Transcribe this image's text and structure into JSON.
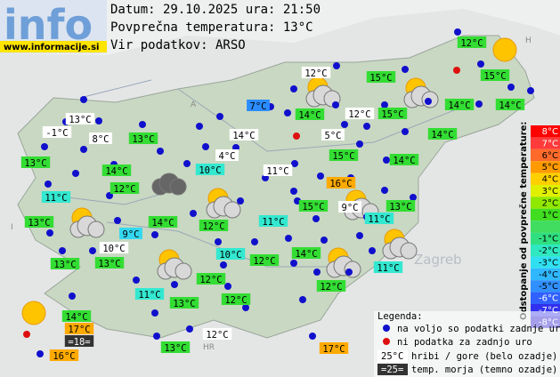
{
  "logo": {
    "title": "info",
    "url": "www.informacije.si"
  },
  "header": {
    "date": "Datum: 29.10.2025 ura: 21:50",
    "average": "Povprečna temperatura: 13°C",
    "source": "Vir podatkov: ARSO"
  },
  "map": {
    "labels": [
      "Zagreb",
      "HR",
      "A",
      "H",
      "I"
    ],
    "stations": [
      {
        "text": "12°C",
        "color": "#33dd33"
      },
      {
        "text": "12°C",
        "color": "#ffffff"
      },
      {
        "text": "15°C",
        "color": "#33dd33"
      },
      {
        "text": "15°C",
        "color": "#33dd33"
      },
      {
        "text": "7°C",
        "color": "#2a8cff"
      },
      {
        "text": "14°C",
        "color": "#33dd33"
      },
      {
        "text": "12°C",
        "color": "#ffffff"
      },
      {
        "text": "15°C",
        "color": "#33dd33"
      },
      {
        "text": "14°C",
        "color": "#33dd33"
      },
      {
        "text": "14°C",
        "color": "#33dd33"
      },
      {
        "text": "13°C",
        "color": "#ffffff"
      },
      {
        "text": "-1°C",
        "color": "#ffffff"
      },
      {
        "text": "8°C",
        "color": "#ffffff"
      },
      {
        "text": "13°C",
        "color": "#33dd33"
      },
      {
        "text": "14°C",
        "color": "#ffffff"
      },
      {
        "text": "5°C",
        "color": "#ffffff"
      },
      {
        "text": "14°C",
        "color": "#33dd33"
      },
      {
        "text": "13°C",
        "color": "#33dd33"
      },
      {
        "text": "4°C",
        "color": "#ffffff"
      },
      {
        "text": "15°C",
        "color": "#33dd33"
      },
      {
        "text": "14°C",
        "color": "#33dd33"
      },
      {
        "text": "14°C",
        "color": "#33dd33"
      },
      {
        "text": "10°C",
        "color": "#33e8d0"
      },
      {
        "text": "11°C",
        "color": "#ffffff"
      },
      {
        "text": "12°C",
        "color": "#33dd33"
      },
      {
        "text": "16°C",
        "color": "#ffaa00"
      },
      {
        "text": "11°C",
        "color": "#33e8d0"
      },
      {
        "text": "15°C",
        "color": "#33dd33"
      },
      {
        "text": "9°C",
        "color": "#ffffff"
      },
      {
        "text": "13°C",
        "color": "#33dd33"
      },
      {
        "text": "13°C",
        "color": "#33dd33"
      },
      {
        "text": "14°C",
        "color": "#33dd33"
      },
      {
        "text": "12°C",
        "color": "#33dd33"
      },
      {
        "text": "11°C",
        "color": "#33e8d0"
      },
      {
        "text": "11°C",
        "color": "#33e8d0"
      },
      {
        "text": "9°C",
        "color": "#33d8f0"
      },
      {
        "text": "10°C",
        "color": "#ffffff"
      },
      {
        "text": "10°C",
        "color": "#33e8d0"
      },
      {
        "text": "12°C",
        "color": "#33dd33"
      },
      {
        "text": "14°C",
        "color": "#33dd33"
      },
      {
        "text": "13°C",
        "color": "#33dd33"
      },
      {
        "text": "13°C",
        "color": "#33dd33"
      },
      {
        "text": "11°C",
        "color": "#33e8d0"
      },
      {
        "text": "12°C",
        "color": "#33dd33"
      },
      {
        "text": "11°C",
        "color": "#33e8d0"
      },
      {
        "text": "13°C",
        "color": "#33dd33"
      },
      {
        "text": "12°C",
        "color": "#33dd33"
      },
      {
        "text": "12°C",
        "color": "#33dd33"
      },
      {
        "text": "14°C",
        "color": "#33dd33"
      },
      {
        "text": "17°C",
        "color": "#ffaa00"
      },
      {
        "text": "=18=",
        "color": "#333333"
      },
      {
        "text": "12°C",
        "color": "#ffffff"
      },
      {
        "text": "13°C",
        "color": "#33dd33"
      },
      {
        "text": "17°C",
        "color": "#ffaa00"
      },
      {
        "text": "16°C",
        "color": "#ffaa00"
      }
    ]
  },
  "scale": {
    "title": "Odstopanje od povprečne temperature:",
    "rows": [
      {
        "label": "8°C",
        "color": "#ff0000"
      },
      {
        "label": "7°C",
        "color": "#ff3a3a"
      },
      {
        "label": "6°C",
        "color": "#ff6a2a"
      },
      {
        "label": "5°C",
        "color": "#ff9a00"
      },
      {
        "label": "4°C",
        "color": "#ffd000"
      },
      {
        "label": "3°C",
        "color": "#e0f000"
      },
      {
        "label": "2°C",
        "color": "#90e800"
      },
      {
        "label": "1°C",
        "color": "#40dd20"
      },
      {
        "label": "-1°C",
        "color": "#30e080"
      },
      {
        "label": "-2°C",
        "color": "#30e8c0"
      },
      {
        "label": "-3°C",
        "color": "#30e0f0"
      },
      {
        "label": "-4°C",
        "color": "#30b8ff"
      },
      {
        "label": "-5°C",
        "color": "#3090ff"
      },
      {
        "label": "-6°C",
        "color": "#3060ff"
      },
      {
        "label": "-7°C",
        "color": "#3030ee"
      },
      {
        "label": "-8°C",
        "color": "#2010cc"
      }
    ]
  },
  "legend": {
    "title": "Legenda:",
    "available": "na voljo so podatki zadnje ure",
    "missing": "ni podatka za zadnjo uro",
    "mountain_sample": "25°C",
    "mountain": "hribi / gore (belo ozadje)",
    "sea_sample": "=25=",
    "sea": "temp. morja (temno ozadje)"
  }
}
